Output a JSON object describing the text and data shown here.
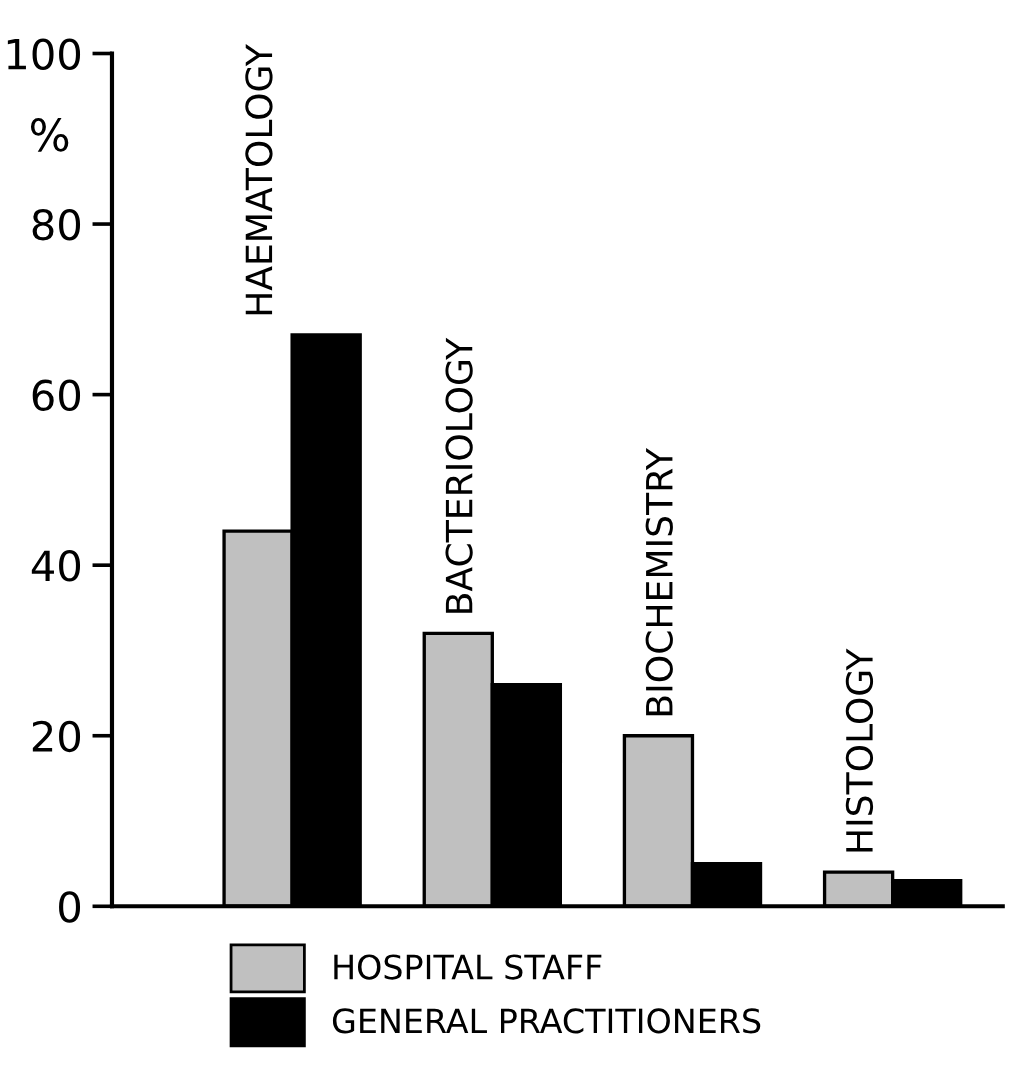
{
  "chart_data": {
    "type": "bar",
    "ylabel": "%",
    "categories": [
      "HAEMATOLOGY",
      "BACTERIOLOGY",
      "BIOCHEMISTRY",
      "HISTOLOGY"
    ],
    "series": [
      {
        "name": "HOSPITAL STAFF",
        "color": "#c0c0c0",
        "values": [
          44,
          32,
          20,
          4
        ]
      },
      {
        "name": "GENERAL PRACTITIONERS",
        "color": "#000000",
        "values": [
          67,
          26,
          5,
          3
        ]
      }
    ],
    "ylim": [
      0,
      100
    ],
    "yticks": [
      0,
      20,
      40,
      60,
      80,
      100
    ],
    "grid": false,
    "legend": "bottom"
  }
}
